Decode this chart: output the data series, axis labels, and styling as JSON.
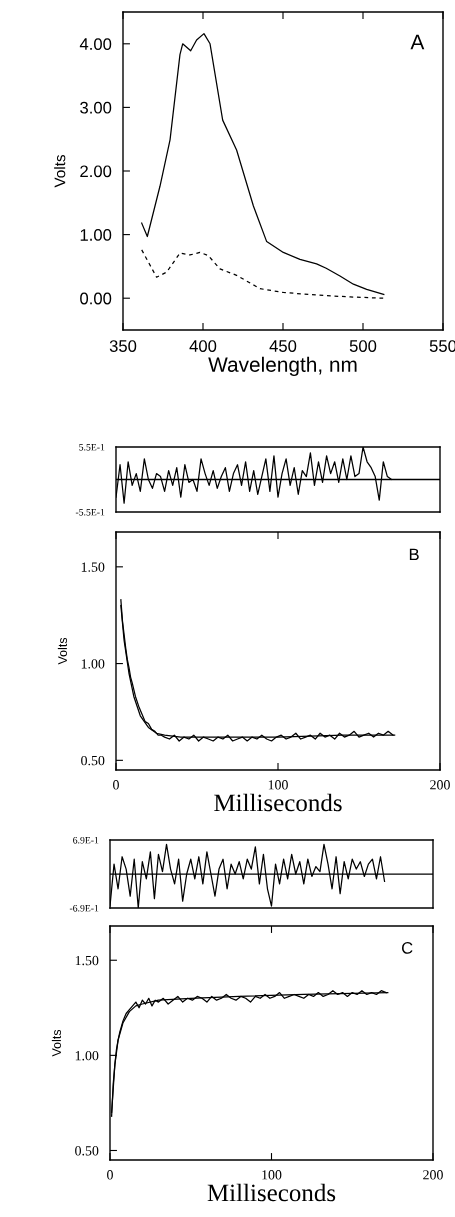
{
  "chart_data": [
    {
      "type": "line",
      "xlabel": "Wavelength, nm",
      "ylabel": "Volts",
      "annotations": [
        "A"
      ],
      "xlim": [
        350,
        550
      ],
      "ylim": [
        -0.5,
        4.5
      ],
      "xticks": [
        350,
        400,
        450,
        500,
        550
      ],
      "yticks": [
        {
          "value": 0,
          "label": "0.00"
        },
        {
          "value": 1,
          "label": "1.00"
        },
        {
          "value": 2,
          "label": "2.00"
        },
        {
          "value": 3,
          "label": "3.00"
        },
        {
          "value": 4,
          "label": "4.00"
        }
      ],
      "grid": false,
      "marker": "none",
      "series": [
        {
          "color": "#000000",
          "line_style": "solid",
          "x": [
            361.7,
            365.2,
            373.1,
            379.4,
            385.6,
            387.3,
            392.3,
            396,
            400.6,
            404.4,
            412.3,
            421,
            431.5,
            439.8,
            450.2,
            460.6,
            471,
            477,
            485.6,
            494,
            502.3,
            513
          ],
          "values": [
            1.18,
            0.97,
            1.76,
            2.49,
            3.83,
            4.0,
            3.89,
            4.06,
            4.16,
            4.0,
            2.8,
            2.33,
            1.45,
            0.89,
            0.72,
            0.61,
            0.54,
            0.47,
            0.35,
            0.22,
            0.14,
            0.06
          ]
        },
        {
          "color": "#000000",
          "line_style": "dashed",
          "x": [
            361.7,
            371,
            377.3,
            385.6,
            391.9,
            398.1,
            403.3,
            410.6,
            421,
            435.6,
            450.2,
            471,
            491.9,
            513
          ],
          "values": [
            0.76,
            0.33,
            0.41,
            0.71,
            0.68,
            0.72,
            0.67,
            0.46,
            0.36,
            0.15,
            0.09,
            0.05,
            0.02,
            0.0
          ]
        }
      ]
    },
    {
      "type": "line",
      "xlim": [
        0,
        200
      ],
      "ylim": [
        -0.55,
        0.55
      ],
      "tick_labels": "y",
      "yticks": [
        {
          "value": 0.55,
          "label": "5.5E-1"
        },
        {
          "value": -0.55,
          "label": "-5.5E-1"
        }
      ],
      "ref_lines": [
        {
          "axis": "y",
          "value": 0,
          "color": "#000000"
        }
      ],
      "grid": false,
      "marker": "none",
      "series": [
        {
          "color": "#000000",
          "x": [
            0,
            2.5,
            5,
            7.5,
            10,
            12.5,
            15,
            17.5,
            20,
            22.5,
            25,
            27.5,
            30,
            32.5,
            35,
            37.5,
            40,
            42.5,
            45,
            47.5,
            50,
            52.5,
            55,
            57.5,
            60,
            62.5,
            65,
            67.5,
            70,
            72.5,
            75,
            77.5,
            80,
            82.5,
            85,
            87.5,
            90,
            92.5,
            95,
            97.5,
            100,
            102.5,
            105,
            107.5,
            110,
            112.5,
            115,
            117.5,
            120,
            122.5,
            125,
            127.5,
            130,
            132.5,
            135,
            137.5,
            140,
            142.5,
            145,
            147.5,
            150,
            152.5,
            155,
            157.5,
            160,
            162.5,
            165,
            167.5,
            170
          ],
          "values": [
            -0.3,
            0.25,
            -0.4,
            0.3,
            -0.1,
            0.1,
            -0.2,
            0.35,
            0.0,
            -0.15,
            0.1,
            0.05,
            -0.2,
            0.15,
            -0.1,
            0.2,
            -0.3,
            0.25,
            -0.05,
            0.0,
            -0.2,
            0.35,
            0.1,
            -0.1,
            0.15,
            -0.15,
            0.05,
            0.2,
            -0.2,
            0.1,
            0.25,
            -0.1,
            0.3,
            -0.2,
            0.15,
            -0.25,
            0.05,
            0.35,
            -0.2,
            0.4,
            -0.3,
            0.1,
            0.35,
            -0.1,
            0.2,
            -0.25,
            0.15,
            0.05,
            0.45,
            -0.1,
            0.3,
            -0.05,
            0.4,
            0.1,
            0.3,
            -0.05,
            0.35,
            0.0,
            0.4,
            0.05,
            0.1,
            0.55,
            0.3,
            0.2,
            0.05,
            -0.35,
            0.3,
            0.05,
            0.0
          ]
        }
      ]
    },
    {
      "type": "line",
      "xlabel": "Milliseconds",
      "ylabel": "Volts",
      "annotations": [
        "B"
      ],
      "xlim": [
        0,
        200
      ],
      "ylim": [
        0.45,
        1.68
      ],
      "xticks": [
        0,
        100,
        200
      ],
      "yticks": [
        {
          "value": 0.5,
          "label": "0.50"
        },
        {
          "value": 1.0,
          "label": "1.00"
        },
        {
          "value": 1.5,
          "label": "1.50"
        }
      ],
      "grid": false,
      "marker": "none",
      "series": [
        {
          "color": "#000000",
          "x": [
            3,
            4,
            5,
            6,
            7,
            8,
            9,
            10,
            12,
            14,
            16,
            18,
            20,
            22,
            24,
            26,
            28,
            30,
            33,
            36,
            39,
            42,
            45,
            48,
            51,
            54,
            57,
            60,
            63,
            66,
            69,
            72,
            75,
            78,
            81,
            84,
            87,
            90,
            93,
            96,
            99,
            102,
            105,
            108,
            111,
            114,
            117,
            120,
            123,
            126,
            129,
            132,
            135,
            138,
            141,
            144,
            147,
            150,
            153,
            156,
            159,
            162,
            165,
            168,
            171
          ],
          "values": [
            1.33,
            1.22,
            1.15,
            1.08,
            1.02,
            0.98,
            0.93,
            0.9,
            0.83,
            0.78,
            0.74,
            0.7,
            0.69,
            0.66,
            0.65,
            0.63,
            0.63,
            0.62,
            0.61,
            0.63,
            0.6,
            0.62,
            0.61,
            0.63,
            0.6,
            0.62,
            0.61,
            0.6,
            0.62,
            0.61,
            0.63,
            0.6,
            0.61,
            0.62,
            0.6,
            0.62,
            0.61,
            0.63,
            0.61,
            0.6,
            0.62,
            0.63,
            0.61,
            0.62,
            0.64,
            0.61,
            0.62,
            0.63,
            0.61,
            0.64,
            0.62,
            0.63,
            0.61,
            0.64,
            0.62,
            0.63,
            0.65,
            0.62,
            0.63,
            0.64,
            0.62,
            0.64,
            0.63,
            0.65,
            0.63
          ]
        },
        {
          "color": "#000000",
          "x": [
            3,
            5,
            8,
            11,
            15,
            20,
            25,
            30,
            40,
            60,
            100,
            140,
            172
          ],
          "values": [
            1.3,
            1.12,
            0.95,
            0.83,
            0.73,
            0.67,
            0.64,
            0.63,
            0.62,
            0.62,
            0.62,
            0.63,
            0.63
          ]
        }
      ]
    },
    {
      "type": "line",
      "xlim": [
        0,
        200
      ],
      "ylim": [
        -0.69,
        0.69
      ],
      "tick_labels": "y",
      "yticks": [
        {
          "value": 0.69,
          "label": "6.9E-1"
        },
        {
          "value": -0.69,
          "label": "-6.9E-1"
        }
      ],
      "ref_lines": [
        {
          "axis": "y",
          "value": 0,
          "color": "#000000"
        }
      ],
      "grid": false,
      "marker": "none",
      "series": [
        {
          "color": "#000000",
          "x": [
            0,
            2.5,
            5,
            7.5,
            10,
            12.5,
            15,
            17.5,
            20,
            22.5,
            25,
            27.5,
            30,
            32.5,
            35,
            37.5,
            40,
            42.5,
            45,
            47.5,
            50,
            52.5,
            55,
            57.5,
            60,
            62.5,
            65,
            67.5,
            70,
            72.5,
            75,
            77.5,
            80,
            82.5,
            85,
            87.5,
            90,
            92.5,
            95,
            97.5,
            100,
            102.5,
            105,
            107.5,
            110,
            112.5,
            115,
            117.5,
            120,
            122.5,
            125,
            127.5,
            130,
            132.5,
            135,
            137.5,
            140,
            142.5,
            145,
            147.5,
            150,
            152.5,
            155,
            157.5,
            160,
            162.5,
            165,
            167.5,
            170
          ],
          "values": [
            -0.65,
            0.2,
            -0.3,
            0.35,
            0.1,
            -0.45,
            0.3,
            -0.69,
            0.25,
            -0.1,
            0.45,
            -0.5,
            0.4,
            0.05,
            0.6,
            0.1,
            -0.2,
            0.3,
            -0.55,
            0.0,
            0.3,
            -0.1,
            0.35,
            -0.2,
            0.45,
            0.0,
            -0.45,
            0.1,
            0.3,
            -0.3,
            0.2,
            0.0,
            0.25,
            -0.1,
            0.3,
            0.1,
            0.55,
            -0.2,
            0.4,
            -0.3,
            -0.65,
            0.2,
            -0.2,
            0.3,
            -0.1,
            0.4,
            0.0,
            0.25,
            -0.2,
            0.3,
            -0.05,
            0.15,
            0.05,
            0.6,
            0.2,
            -0.3,
            0.35,
            -0.4,
            0.25,
            -0.1,
            0.3,
            0.1,
            0.25,
            -0.05,
            0.2,
            0.3,
            -0.1,
            0.35,
            -0.15
          ]
        }
      ]
    },
    {
      "type": "line",
      "xlabel": "Milliseconds",
      "ylabel": "Volts",
      "annotations": [
        "C"
      ],
      "xlim": [
        0,
        200
      ],
      "ylim": [
        0.45,
        1.68
      ],
      "xticks": [
        0,
        100,
        200
      ],
      "yticks": [
        {
          "value": 0.5,
          "label": "0.50"
        },
        {
          "value": 1.0,
          "label": "1.00"
        },
        {
          "value": 1.5,
          "label": "1.50"
        }
      ],
      "grid": false,
      "marker": "none",
      "series": [
        {
          "color": "#000000",
          "x": [
            1,
            2,
            3,
            4,
            5,
            6,
            7,
            8,
            9,
            10,
            12,
            14,
            16,
            18,
            20,
            22,
            24,
            26,
            28,
            30,
            33,
            36,
            39,
            42,
            45,
            48,
            51,
            54,
            57,
            60,
            63,
            66,
            69,
            72,
            75,
            78,
            81,
            84,
            87,
            90,
            93,
            96,
            99,
            102,
            105,
            108,
            111,
            114,
            117,
            120,
            123,
            126,
            129,
            132,
            135,
            138,
            141,
            144,
            147,
            150,
            153,
            156,
            159,
            162,
            165,
            168,
            171
          ],
          "values": [
            0.68,
            0.85,
            0.95,
            1.03,
            1.08,
            1.12,
            1.15,
            1.18,
            1.2,
            1.22,
            1.24,
            1.26,
            1.28,
            1.25,
            1.29,
            1.27,
            1.3,
            1.26,
            1.29,
            1.28,
            1.3,
            1.27,
            1.29,
            1.31,
            1.28,
            1.3,
            1.29,
            1.31,
            1.3,
            1.28,
            1.31,
            1.29,
            1.3,
            1.32,
            1.3,
            1.29,
            1.31,
            1.3,
            1.28,
            1.31,
            1.3,
            1.32,
            1.3,
            1.31,
            1.33,
            1.3,
            1.31,
            1.32,
            1.31,
            1.3,
            1.32,
            1.31,
            1.33,
            1.31,
            1.32,
            1.34,
            1.32,
            1.33,
            1.31,
            1.33,
            1.32,
            1.34,
            1.32,
            1.33,
            1.32,
            1.34,
            1.33
          ]
        },
        {
          "color": "#000000",
          "x": [
            1,
            3,
            5,
            8,
            12,
            16,
            20,
            30,
            50,
            80,
            120,
            172
          ],
          "values": [
            0.7,
            0.95,
            1.08,
            1.17,
            1.23,
            1.26,
            1.27,
            1.29,
            1.3,
            1.31,
            1.32,
            1.33
          ]
        }
      ]
    }
  ]
}
